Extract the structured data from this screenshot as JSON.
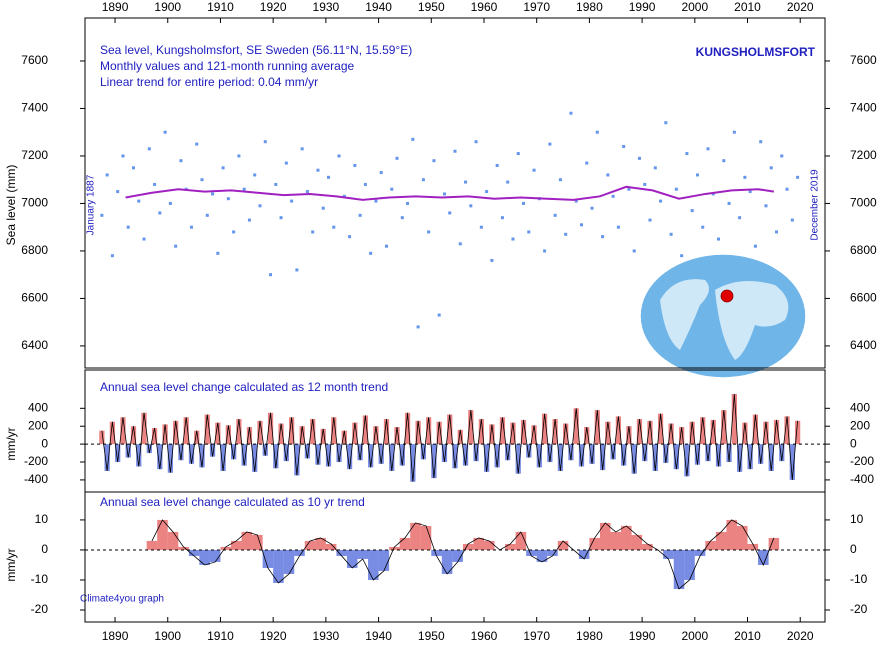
{
  "chart_data": [
    {
      "type": "scatter",
      "title": "Sea level, Kungsholmsfort, SE Sweden (56.11°N, 15.59°E)",
      "subtitle": "Monthly values and 121-month running average",
      "annotations": [
        "Linear trend for entire period: 0.04 mm/yr",
        "KUNGSHOLMSFORT",
        "January 1887",
        "December 2019"
      ],
      "ylabel": "Sea level (mm)",
      "xlim": [
        1884.3,
        2024.7
      ],
      "xticks": [
        1890,
        1900,
        1910,
        1920,
        1930,
        1940,
        1950,
        1960,
        1970,
        1980,
        1990,
        2000,
        2010,
        2020
      ],
      "ylim": [
        6307,
        7781
      ],
      "yticks": [
        6400,
        6600,
        6800,
        7000,
        7200,
        7400,
        7600
      ],
      "grid": false,
      "series": [
        {
          "type": "scatter",
          "color": "#6495ed",
          "x": [
            1887.5,
            1888.5,
            1889.5,
            1890.5,
            1891.5,
            1892.5,
            1893.5,
            1894.5,
            1895.5,
            1896.5,
            1897.5,
            1898.5,
            1899.5,
            1900.5,
            1901.5,
            1902.5,
            1903.5,
            1904.5,
            1905.5,
            1906.5,
            1907.5,
            1908.5,
            1909.5,
            1910.5,
            1911.5,
            1912.5,
            1913.5,
            1914.5,
            1915.5,
            1916.5,
            1917.5,
            1918.5,
            1919.5,
            1920.5,
            1921.5,
            1922.5,
            1923.5,
            1924.5,
            1925.5,
            1926.5,
            1927.5,
            1928.5,
            1929.5,
            1930.5,
            1931.5,
            1932.5,
            1933.5,
            1934.5,
            1935.5,
            1936.5,
            1937.5,
            1938.5,
            1939.5,
            1940.5,
            1941.5,
            1942.5,
            1943.5,
            1944.5,
            1945.5,
            1946.5,
            1947.5,
            1948.5,
            1949.5,
            1950.5,
            1951.5,
            1952.5,
            1953.5,
            1954.5,
            1955.5,
            1956.5,
            1957.5,
            1958.5,
            1959.5,
            1960.5,
            1961.5,
            1962.5,
            1963.5,
            1964.5,
            1965.5,
            1966.5,
            1967.5,
            1968.5,
            1969.5,
            1970.5,
            1971.5,
            1972.5,
            1973.5,
            1974.5,
            1975.5,
            1976.5,
            1977.5,
            1978.5,
            1979.5,
            1980.5,
            1981.5,
            1982.5,
            1983.5,
            1984.5,
            1985.5,
            1986.5,
            1987.5,
            1988.5,
            1989.5,
            1990.5,
            1991.5,
            1992.5,
            1993.5,
            1994.5,
            1995.5,
            1996.5,
            1997.5,
            1998.5,
            1999.5,
            2000.5,
            2001.5,
            2002.5,
            2003.5,
            2004.5,
            2005.5,
            2006.5,
            2007.5,
            2008.5,
            2009.5,
            2010.5,
            2011.5,
            2012.5,
            2013.5,
            2014.5,
            2015.5,
            2016.5,
            2017.5,
            2018.5,
            2019.5
          ],
          "values": [
            6950,
            7120,
            6780,
            7050,
            7200,
            6900,
            7150,
            7010,
            6850,
            7230,
            7080,
            6960,
            7300,
            7000,
            6820,
            7180,
            7060,
            6900,
            7250,
            7100,
            6950,
            7040,
            6790,
            7150,
            7020,
            6880,
            7200,
            7060,
            6930,
            7120,
            6990,
            7260,
            6700,
            7080,
            6940,
            7170,
            7010,
            6720,
            7230,
            7050,
            6880,
            7140,
            6980,
            7110,
            6900,
            7200,
            7030,
            6860,
            7160,
            6950,
            7080,
            6790,
            7010,
            7130,
            6820,
            7060,
            7190,
            6940,
            7000,
            7270,
            6480,
            7100,
            6880,
            7180,
            6530,
            7040,
            6960,
            7220,
            6830,
            7090,
            6990,
            7260,
            6900,
            7050,
            6760,
            7160,
            6940,
            7090,
            6850,
            7210,
            7000,
            6880,
            7140,
            7020,
            6800,
            7250,
            6950,
            7100,
            6870,
            7380,
            7010,
            6910,
            7170,
            6980,
            7300,
            6860,
            7120,
            7030,
            6900,
            7240,
            7060,
            6800,
            7190,
            7080,
            6930,
            7150,
            7010,
            7340,
            6870,
            7060,
            6780,
            7210,
            6970,
            7120,
            6900,
            7230,
            7040,
            6850,
            7180,
            7000,
            7300,
            6940,
            7110,
            7050,
            6820,
            7260,
            6990,
            7150,
            6880,
            7200,
            7060,
            6930,
            7110
          ]
        },
        {
          "type": "line",
          "color": "#a020c0",
          "x": [
            1892,
            1897,
            1902,
            1907,
            1912,
            1917,
            1922,
            1927,
            1932,
            1937,
            1942,
            1947,
            1952,
            1957,
            1962,
            1967,
            1972,
            1977,
            1982,
            1987,
            1992,
            1997,
            2002,
            2007,
            2012,
            2015
          ],
          "values": [
            7025,
            7045,
            7060,
            7050,
            7055,
            7045,
            7035,
            7040,
            7030,
            7015,
            7025,
            7030,
            7025,
            7030,
            7020,
            7025,
            7020,
            7015,
            7030,
            7070,
            7055,
            7020,
            7040,
            7055,
            7060,
            7050
          ]
        }
      ]
    },
    {
      "type": "area",
      "title": "Annual sea level change calculated as 12 month trend",
      "ylabel": "mm/yr",
      "xlim": [
        1884.3,
        2024.7
      ],
      "ylim": [
        -535,
        828
      ],
      "yticks": [
        -400,
        -200,
        0,
        200,
        400
      ],
      "colors": {
        "positive": "#e03030",
        "negative": "#2040d0"
      },
      "x": [
        1887.5,
        1888.5,
        1889.5,
        1890.5,
        1891.5,
        1892.5,
        1893.5,
        1894.5,
        1895.5,
        1896.5,
        1897.5,
        1898.5,
        1899.5,
        1900.5,
        1901.5,
        1902.5,
        1903.5,
        1904.5,
        1905.5,
        1906.5,
        1907.5,
        1908.5,
        1909.5,
        1910.5,
        1911.5,
        1912.5,
        1913.5,
        1914.5,
        1915.5,
        1916.5,
        1917.5,
        1918.5,
        1919.5,
        1920.5,
        1921.5,
        1922.5,
        1923.5,
        1924.5,
        1925.5,
        1926.5,
        1927.5,
        1928.5,
        1929.5,
        1930.5,
        1931.5,
        1932.5,
        1933.5,
        1934.5,
        1935.5,
        1936.5,
        1937.5,
        1938.5,
        1939.5,
        1940.5,
        1941.5,
        1942.5,
        1943.5,
        1944.5,
        1945.5,
        1946.5,
        1947.5,
        1948.5,
        1949.5,
        1950.5,
        1951.5,
        1952.5,
        1953.5,
        1954.5,
        1955.5,
        1956.5,
        1957.5,
        1958.5,
        1959.5,
        1960.5,
        1961.5,
        1962.5,
        1963.5,
        1964.5,
        1965.5,
        1966.5,
        1967.5,
        1968.5,
        1969.5,
        1970.5,
        1971.5,
        1972.5,
        1973.5,
        1974.5,
        1975.5,
        1976.5,
        1977.5,
        1978.5,
        1979.5,
        1980.5,
        1981.5,
        1982.5,
        1983.5,
        1984.5,
        1985.5,
        1986.5,
        1987.5,
        1988.5,
        1989.5,
        1990.5,
        1991.5,
        1992.5,
        1993.5,
        1994.5,
        1995.5,
        1996.5,
        1997.5,
        1998.5,
        1999.5,
        2000.5,
        2001.5,
        2002.5,
        2003.5,
        2004.5,
        2005.5,
        2006.5,
        2007.5,
        2008.5,
        2009.5,
        2010.5,
        2011.5,
        2012.5,
        2013.5,
        2014.5,
        2015.5,
        2016.5,
        2017.5,
        2018.5,
        2019.5
      ],
      "values": [
        150,
        -300,
        250,
        -200,
        300,
        -150,
        200,
        -250,
        350,
        -100,
        180,
        -280,
        220,
        -320,
        260,
        -180,
        300,
        -220,
        150,
        -260,
        330,
        -140,
        240,
        -300,
        210,
        -170,
        280,
        -240,
        190,
        -310,
        260,
        -130,
        350,
        -270,
        230,
        -190,
        300,
        -350,
        200,
        -160,
        280,
        -230,
        170,
        -250,
        300,
        -200,
        150,
        -280,
        240,
        -180,
        320,
        -260,
        200,
        -220,
        280,
        -300,
        190,
        -240,
        350,
        -420,
        260,
        -170,
        300,
        -380,
        250,
        -200,
        330,
        -270,
        160,
        -240,
        380,
        -190,
        280,
        -310,
        220,
        -260,
        300,
        -180,
        240,
        -330,
        270,
        -150,
        210,
        -260,
        340,
        -200,
        280,
        -300,
        230,
        -180,
        400,
        -250,
        190,
        -220,
        380,
        -290,
        250,
        -170,
        310,
        -240,
        200,
        -330,
        280,
        -190,
        260,
        -300,
        340,
        -210,
        230,
        -280,
        190,
        -360,
        250,
        -230,
        300,
        -190,
        270,
        -250,
        380,
        -200,
        560,
        -310,
        240,
        -280,
        330,
        -220,
        250,
        -300,
        270,
        -190,
        310,
        -400,
        260
      ]
    },
    {
      "type": "area",
      "title": "Annual sea level change calculated as 10 yr trend",
      "ylabel": "mm/yr",
      "annotations": [
        "Climate4you graph"
      ],
      "xlim": [
        1884.3,
        2024.7
      ],
      "xticks": [
        1890,
        1900,
        1910,
        1920,
        1930,
        1940,
        1950,
        1960,
        1970,
        1980,
        1990,
        2000,
        2010,
        2020
      ],
      "ylim": [
        -24,
        19.3
      ],
      "yticks": [
        -20,
        -10,
        0,
        10
      ],
      "colors": {
        "positive": "#e03030",
        "negative": "#2040d0"
      },
      "x": [
        1897,
        1899,
        1901,
        1903,
        1905,
        1907,
        1909,
        1911,
        1913,
        1915,
        1917,
        1919,
        1921,
        1923,
        1925,
        1927,
        1929,
        1931,
        1933,
        1935,
        1937,
        1939,
        1941,
        1943,
        1945,
        1947,
        1949,
        1951,
        1953,
        1955,
        1957,
        1959,
        1961,
        1963,
        1965,
        1967,
        1969,
        1971,
        1973,
        1975,
        1977,
        1979,
        1981,
        1983,
        1985,
        1987,
        1989,
        1991,
        1993,
        1995,
        1997,
        1999,
        2001,
        2003,
        2005,
        2007,
        2009,
        2011,
        2013,
        2015
      ],
      "values": [
        3,
        10,
        6,
        1,
        -2,
        -5,
        -4,
        1,
        3,
        6,
        5,
        -6,
        -11,
        -8,
        -2,
        3,
        4,
        2,
        -2,
        -6,
        -3,
        -10,
        -7,
        1,
        4,
        9,
        8,
        -2,
        -8,
        -4,
        2,
        4,
        3,
        0,
        2,
        6,
        -2,
        -4,
        -2,
        3,
        0,
        -3,
        4,
        9,
        6,
        8,
        5,
        2,
        0,
        -3,
        -13,
        -10,
        -2,
        3,
        6,
        10,
        8,
        2,
        -5,
        4
      ]
    }
  ]
}
